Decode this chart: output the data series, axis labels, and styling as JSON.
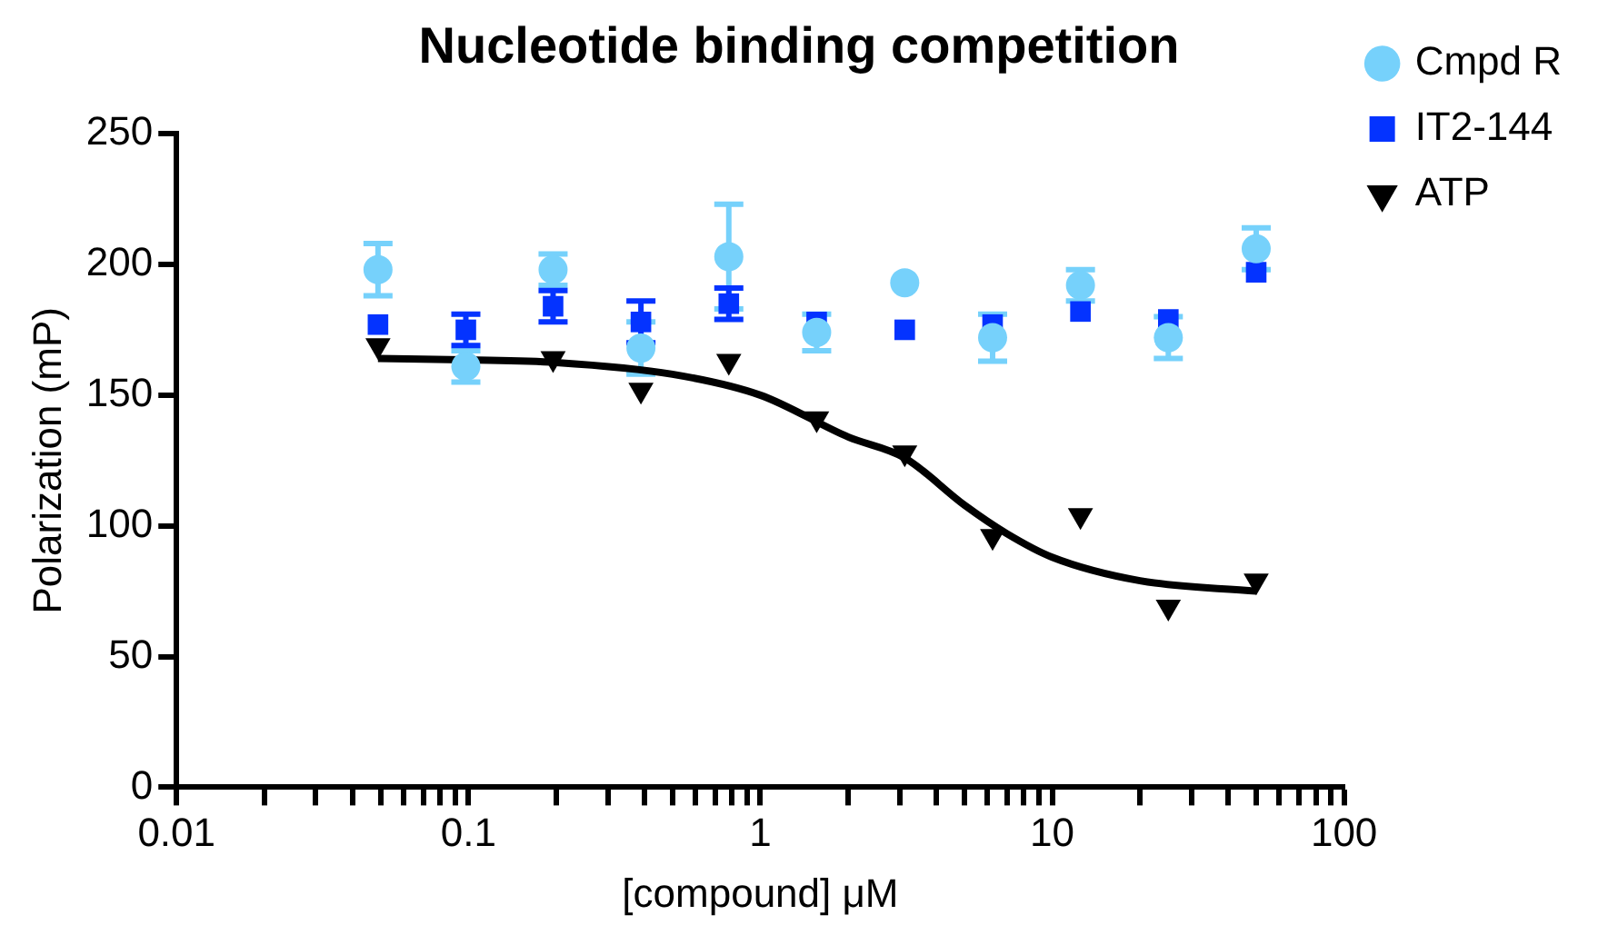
{
  "chart_data": {
    "type": "scatter",
    "title": "Nucleotide binding competition",
    "xlabel": "[compound] μM",
    "ylabel": "Polarization (mP)",
    "log": "x",
    "xlim": [
      0.01,
      100
    ],
    "ylim": [
      0,
      250
    ],
    "xticks": [
      0.01,
      {
        "value": 0.02,
        "label": null
      },
      {
        "value": 0.03,
        "label": null
      },
      {
        "value": 0.04,
        "label": null
      },
      {
        "value": 0.05,
        "label": null
      },
      {
        "value": 0.06,
        "label": null
      },
      {
        "value": 0.07,
        "label": null
      },
      {
        "value": 0.08,
        "label": null
      },
      {
        "value": 0.09,
        "label": null
      },
      0.1,
      {
        "value": 0.2,
        "label": null
      },
      {
        "value": 0.3,
        "label": null
      },
      {
        "value": 0.4,
        "label": null
      },
      {
        "value": 0.5,
        "label": null
      },
      {
        "value": 0.6,
        "label": null
      },
      {
        "value": 0.7,
        "label": null
      },
      {
        "value": 0.8,
        "label": null
      },
      {
        "value": 0.9,
        "label": null
      },
      1,
      {
        "value": 2,
        "label": null
      },
      {
        "value": 3,
        "label": null
      },
      {
        "value": 4,
        "label": null
      },
      {
        "value": 5,
        "label": null
      },
      {
        "value": 6,
        "label": null
      },
      {
        "value": 7,
        "label": null
      },
      {
        "value": 8,
        "label": null
      },
      {
        "value": 9,
        "label": null
      },
      10,
      {
        "value": 20,
        "label": null
      },
      {
        "value": 30,
        "label": null
      },
      {
        "value": 40,
        "label": null
      },
      {
        "value": 50,
        "label": null
      },
      {
        "value": 60,
        "label": null
      },
      {
        "value": 70,
        "label": null
      },
      {
        "value": 80,
        "label": null
      },
      {
        "value": 90,
        "label": null
      },
      100
    ],
    "yticks": [
      0,
      50,
      100,
      150,
      200,
      250
    ],
    "grid": false,
    "legend": "top right",
    "x": [
      0.049,
      0.098,
      0.195,
      0.39,
      0.78,
      1.56,
      3.125,
      6.25,
      12.5,
      25,
      50
    ],
    "series": [
      {
        "name": "Cmpd R",
        "color": "#76d1fb",
        "marker": "circle",
        "values": [
          198,
          161,
          198,
          168,
          203,
          174,
          193,
          172,
          192,
          172,
          206
        ],
        "errors": [
          10,
          6,
          6,
          10,
          20,
          7,
          null,
          9,
          6,
          8,
          8
        ]
      },
      {
        "name": "IT2-144",
        "color": "#0433ff",
        "marker": "square",
        "values": [
          177,
          175,
          184,
          178,
          185,
          178,
          175,
          177,
          182,
          179,
          197
        ],
        "errors": [
          null,
          6,
          6,
          8,
          6,
          null,
          null,
          null,
          null,
          null,
          null
        ]
      },
      {
        "name": "ATP",
        "color": "#000000",
        "marker": "triangle",
        "values": [
          169,
          null,
          164,
          152,
          163,
          141,
          128,
          96,
          104,
          69,
          79
        ]
      },
      {
        "type": "line",
        "color": "#000000",
        "marker": "none",
        "x": [
          0.049,
          0.1,
          0.2,
          0.5,
          1,
          2,
          3.125,
          5,
          7,
          10,
          20,
          50
        ],
        "values": [
          164,
          163.5,
          162.5,
          158,
          150,
          134,
          126,
          108,
          97,
          88,
          79,
          75
        ]
      }
    ]
  }
}
